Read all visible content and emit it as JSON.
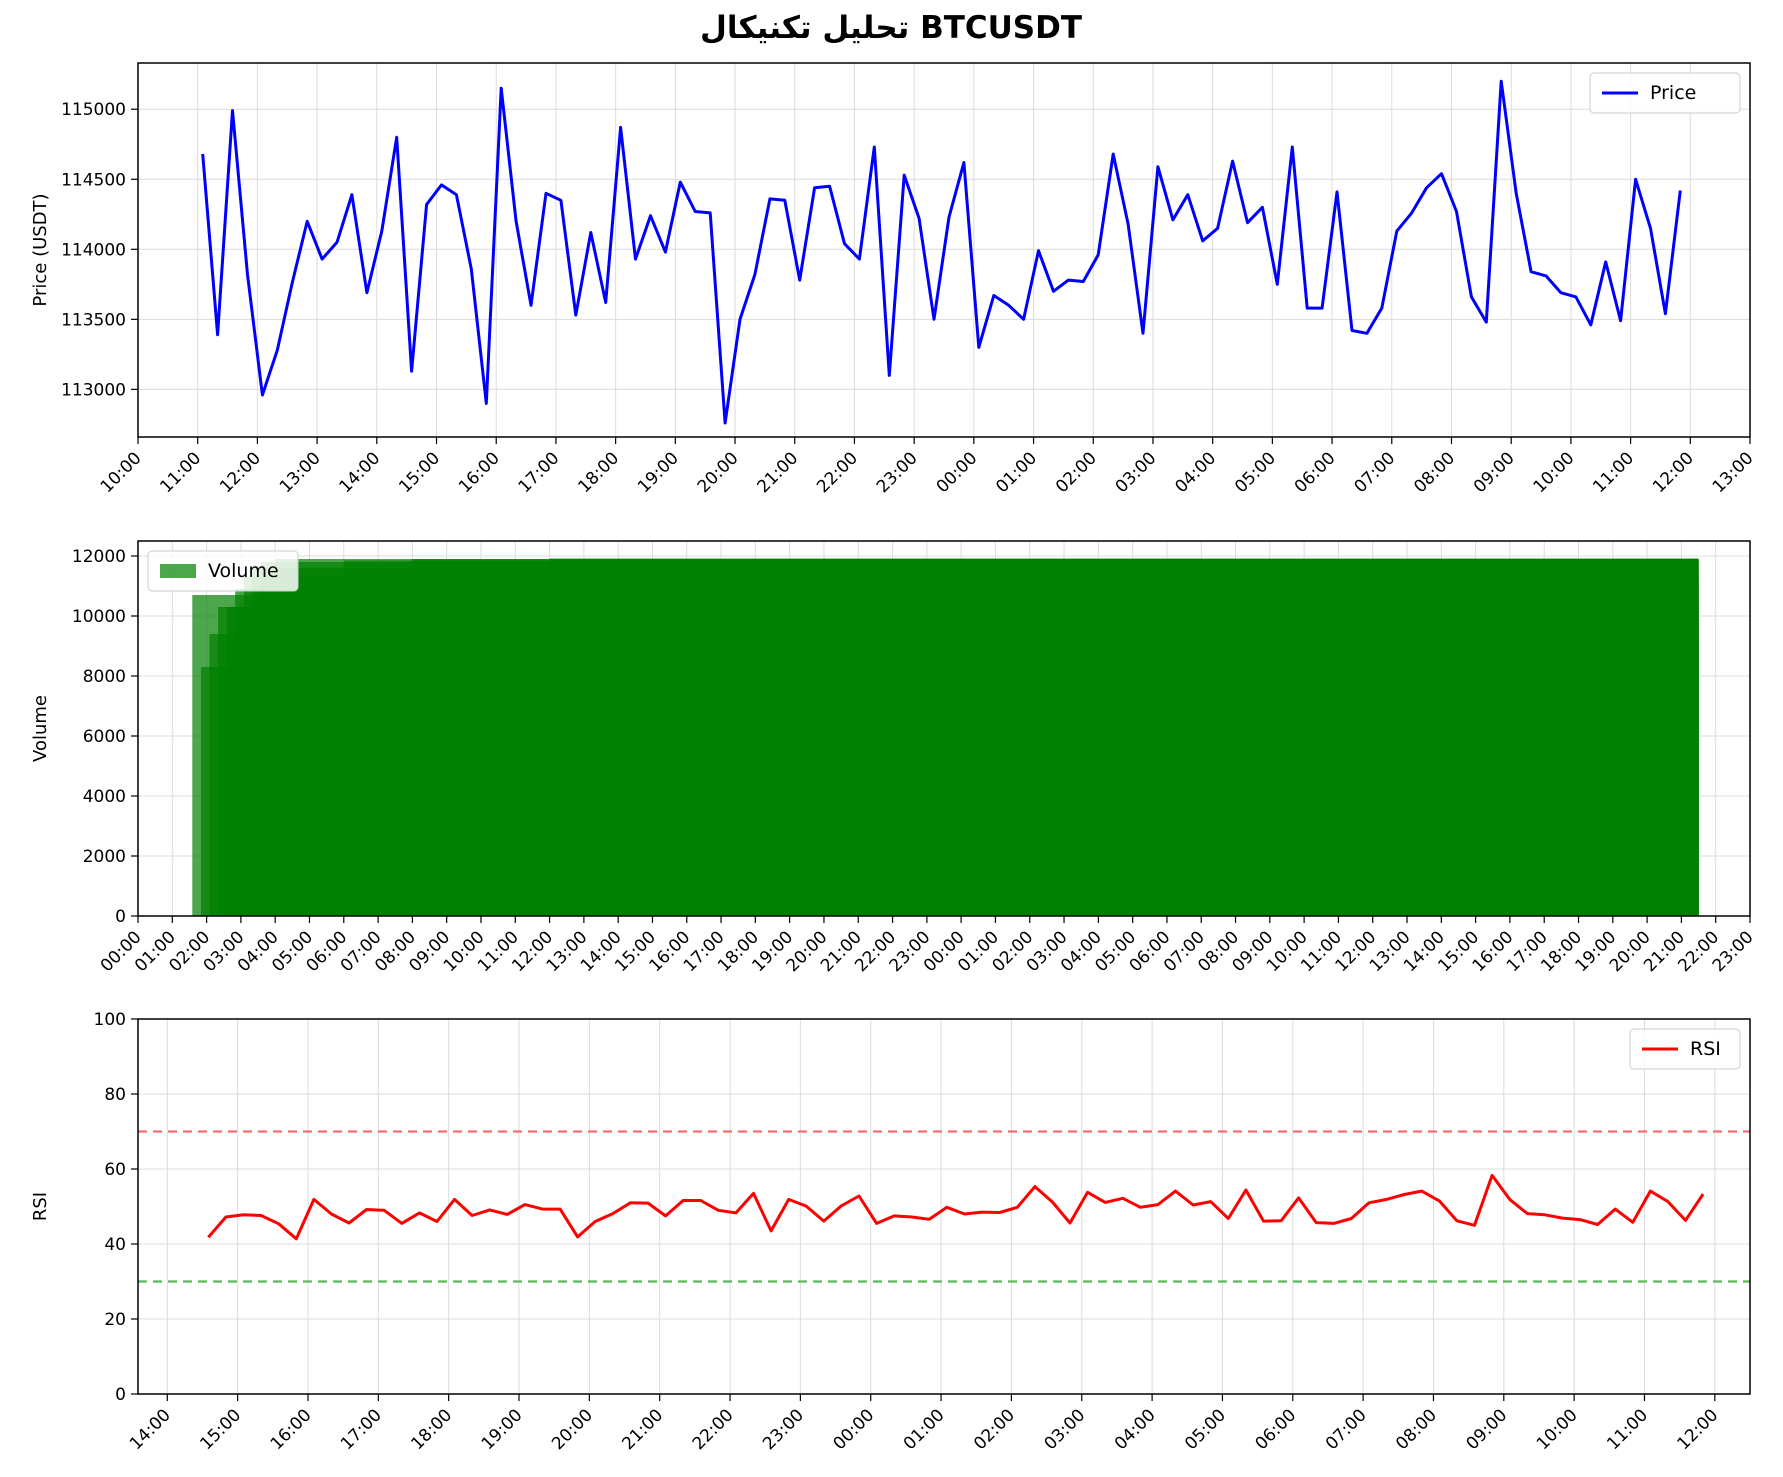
{
  "title": "تحلیل تکنیکال BTCUSDT",
  "colors": {
    "price": "#0000ff",
    "volume": "#008000",
    "rsi": "#ff0000",
    "overbought": "#ff6b6b",
    "oversold": "#5cb85c",
    "grid": "#dcdcdc"
  },
  "chart_data": [
    {
      "type": "line",
      "ylabel": "Price (USDT)",
      "xlabel": "",
      "x_start": "11:05",
      "x_step_minutes": 15,
      "xlim": [
        "10:00",
        "13:00 (+1 day)"
      ],
      "ylim": [
        112660,
        115330
      ],
      "x_ticks": [
        "10:00",
        "11:00",
        "12:00",
        "13:00",
        "14:00",
        "15:00",
        "16:00",
        "17:00",
        "18:00",
        "19:00",
        "20:00",
        "21:00",
        "22:00",
        "23:00",
        "00:00",
        "01:00",
        "02:00",
        "03:00",
        "04:00",
        "05:00",
        "06:00",
        "07:00",
        "08:00",
        "09:00",
        "10:00",
        "11:00",
        "12:00",
        "13:00"
      ],
      "y_ticks": [
        113000,
        113500,
        114000,
        114500,
        115000
      ],
      "legend": "top-right",
      "grid": true,
      "series": [
        {
          "name": "Price",
          "values": [
            114680,
            113390,
            114990,
            113820,
            112960,
            113280,
            113760,
            114200,
            113930,
            114050,
            114390,
            113690,
            114130,
            114800,
            113130,
            114320,
            114460,
            114390,
            113860,
            112900,
            115150,
            114200,
            113600,
            114400,
            114350,
            113530,
            114120,
            113620,
            114870,
            113930,
            114240,
            113980,
            114480,
            114270,
            114260,
            112760,
            113500,
            113820,
            114360,
            114350,
            113780,
            114440,
            114450,
            114040,
            113930,
            114730,
            113100,
            114530,
            114220,
            113500,
            114230,
            114620,
            113300,
            113670,
            113600,
            113500,
            113990,
            113700,
            113780,
            113770,
            113960,
            114680,
            114180,
            113400,
            114590,
            114210,
            114390,
            114060,
            114150,
            114630,
            114190,
            114300,
            113750,
            114730,
            113580,
            113580,
            114410,
            113420,
            113400,
            113580,
            114130,
            114260,
            114440,
            114540,
            114270,
            113660,
            113480,
            115200,
            114400,
            113840,
            113810,
            113690,
            113660,
            113460,
            113910,
            113490,
            114500,
            114150,
            113540,
            114420
          ]
        }
      ]
    },
    {
      "type": "bar",
      "ylabel": "Volume",
      "xlabel": "",
      "xlim": [
        "00:00",
        "23:00 (+1 day)"
      ],
      "ylim": [
        0,
        12500
      ],
      "x_ticks": [
        "00:00",
        "01:00",
        "02:00",
        "03:00",
        "04:00",
        "05:00",
        "06:00",
        "07:00",
        "08:00",
        "09:00",
        "10:00",
        "11:00",
        "12:00",
        "13:00",
        "14:00",
        "15:00",
        "16:00",
        "17:00",
        "18:00",
        "19:00",
        "20:00",
        "21:00",
        "22:00",
        "23:00",
        "00:00",
        "01:00",
        "02:00",
        "03:00",
        "04:00",
        "05:00",
        "06:00",
        "07:00",
        "08:00",
        "09:00",
        "10:00",
        "11:00",
        "12:00",
        "13:00",
        "14:00",
        "15:00",
        "16:00",
        "17:00",
        "18:00",
        "19:00",
        "20:00",
        "21:00",
        "22:00",
        "23:00"
      ],
      "y_ticks": [
        0,
        2000,
        4000,
        6000,
        8000,
        10000,
        12000
      ],
      "legend": "top-left",
      "grid": true,
      "series": [
        {
          "name": "Volume",
          "bars": [
            {
              "x": "01:35",
              "value": 10700
            },
            {
              "x": "01:50",
              "value": 8300
            },
            {
              "x": "02:05",
              "value": 9400
            },
            {
              "x": "02:20",
              "value": 10300
            },
            {
              "x": "02:35",
              "value": 10300
            },
            {
              "x": "02:50",
              "value": 10900
            },
            {
              "x": "03:05",
              "value": 11300
            },
            {
              "x": "03:20",
              "value": 11600
            },
            {
              "x": "03:35",
              "value": 11800
            },
            {
              "x": "04:00",
              "value": 11900
            },
            {
              "x": "06:00",
              "value": 11850
            },
            {
              "x": "08:00",
              "value": 11900
            },
            {
              "x": "12:00",
              "value": 11920
            },
            {
              "x": "18:00",
              "value": 11900
            },
            {
              "x": "23:00",
              "value": 11850
            },
            {
              "x": "02:00",
              "value": 11880
            },
            {
              "x": "06:00",
              "value": 11750
            },
            {
              "x": "12:00",
              "value": 11700
            },
            {
              "x": "16:00",
              "value": 11550
            },
            {
              "x": "18:00",
              "value": 11400
            },
            {
              "x": "19:15",
              "value": 11200
            },
            {
              "x": "19:45",
              "value": 11050
            },
            {
              "x": "20:15",
              "value": 10900
            },
            {
              "x": "20:30",
              "value": 9200
            },
            {
              "x": "20:45",
              "value": 11800
            }
          ]
        }
      ]
    },
    {
      "type": "line",
      "ylabel": "RSI",
      "xlabel": "",
      "x_start": "14:35",
      "x_step_minutes": 15,
      "xlim": [
        "13:35",
        "12:30 (+1 day)"
      ],
      "ylim": [
        0,
        100
      ],
      "x_ticks": [
        "14:00",
        "15:00",
        "16:00",
        "17:00",
        "18:00",
        "19:00",
        "20:00",
        "21:00",
        "22:00",
        "23:00",
        "00:00",
        "01:00",
        "02:00",
        "03:00",
        "04:00",
        "05:00",
        "06:00",
        "07:00",
        "08:00",
        "09:00",
        "10:00",
        "11:00",
        "12:00"
      ],
      "y_ticks": [
        0,
        20,
        40,
        60,
        80,
        100
      ],
      "legend": "top-right",
      "grid": true,
      "reference_lines": [
        70,
        30
      ],
      "series": [
        {
          "name": "RSI",
          "values": [
            41.8,
            47.2,
            47.8,
            47.6,
            45.4,
            41.4,
            51.9,
            48.0,
            45.6,
            49.2,
            49.0,
            45.5,
            48.3,
            46.0,
            51.9,
            47.6,
            49.1,
            47.9,
            50.5,
            49.3,
            49.3,
            41.9,
            46.0,
            48.1,
            51.0,
            50.9,
            47.5,
            51.6,
            51.6,
            49.0,
            48.3,
            53.5,
            43.5,
            51.9,
            50.1,
            46.1,
            50.2,
            52.8,
            45.5,
            47.5,
            47.2,
            46.6,
            49.8,
            48.0,
            48.5,
            48.4,
            49.8,
            55.3,
            51.2,
            45.6,
            53.8,
            51.1,
            52.2,
            49.8,
            50.5,
            54.1,
            50.4,
            51.3,
            46.8,
            54.4,
            46.1,
            46.2,
            52.3,
            45.7,
            45.5,
            46.8,
            51.0,
            51.9,
            53.2,
            54.1,
            51.5,
            46.2,
            45.0,
            58.3,
            51.9,
            48.1,
            47.8,
            46.9,
            46.5,
            45.2,
            49.3,
            45.8,
            54.1,
            51.3,
            46.3,
            53.3
          ]
        }
      ]
    }
  ]
}
